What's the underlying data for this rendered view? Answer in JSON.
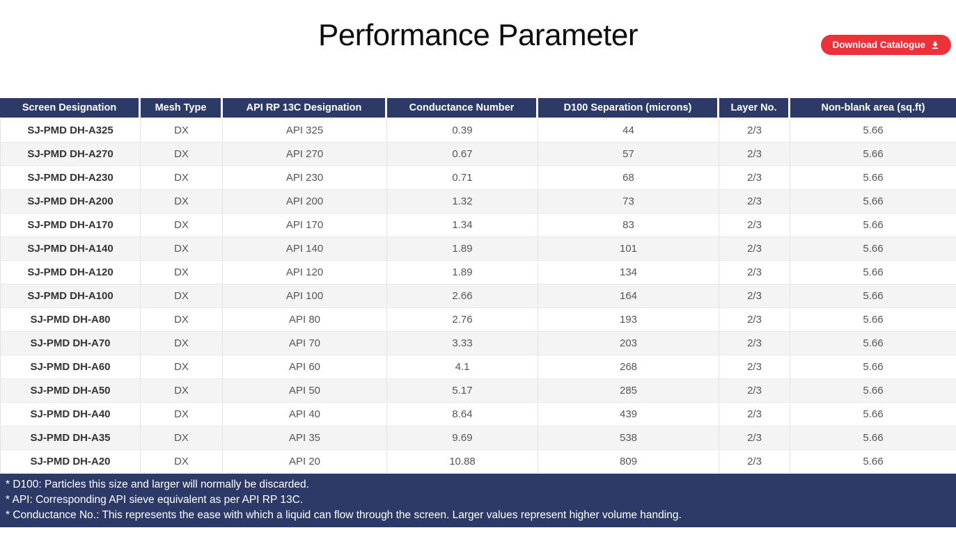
{
  "page": {
    "title": "Performance Parameter"
  },
  "toolbar": {
    "download_button_label": "Download Catalogue",
    "download_icon": "download-tray-arrow"
  },
  "colors": {
    "navy": "#2d3a68",
    "button_red": "#ed3138",
    "stripe_gray": "#f4f4f4"
  },
  "table": {
    "columns": [
      "Screen Designation",
      "Mesh Type",
      "API RP 13C Designation",
      "Conductance Number",
      "D100 Separation (microns)",
      "Layer No.",
      "Non-blank area (sq.ft)"
    ],
    "rows": [
      [
        "SJ-PMD DH-A325",
        "DX",
        "API 325",
        "0.39",
        "44",
        "2/3",
        "5.66"
      ],
      [
        "SJ-PMD DH-A270",
        "DX",
        "API 270",
        "0.67",
        "57",
        "2/3",
        "5.66"
      ],
      [
        "SJ-PMD DH-A230",
        "DX",
        "API 230",
        "0.71",
        "68",
        "2/3",
        "5.66"
      ],
      [
        "SJ-PMD DH-A200",
        "DX",
        "API 200",
        "1.32",
        "73",
        "2/3",
        "5.66"
      ],
      [
        "SJ-PMD DH-A170",
        "DX",
        "API 170",
        "1.34",
        "83",
        "2/3",
        "5.66"
      ],
      [
        "SJ-PMD DH-A140",
        "DX",
        "API 140",
        "1.89",
        "101",
        "2/3",
        "5.66"
      ],
      [
        "SJ-PMD DH-A120",
        "DX",
        "API 120",
        "1.89",
        "134",
        "2/3",
        "5.66"
      ],
      [
        "SJ-PMD DH-A100",
        "DX",
        "API 100",
        "2.66",
        "164",
        "2/3",
        "5.66"
      ],
      [
        "SJ-PMD DH-A80",
        "DX",
        "API 80",
        "2.76",
        "193",
        "2/3",
        "5.66"
      ],
      [
        "SJ-PMD DH-A70",
        "DX",
        "API 70",
        "3.33",
        "203",
        "2/3",
        "5.66"
      ],
      [
        "SJ-PMD DH-A60",
        "DX",
        "API 60",
        "4.1",
        "268",
        "2/3",
        "5.66"
      ],
      [
        "SJ-PMD DH-A50",
        "DX",
        "API 50",
        "5.17",
        "285",
        "2/3",
        "5.66"
      ],
      [
        "SJ-PMD DH-A40",
        "DX",
        "API 40",
        "8.64",
        "439",
        "2/3",
        "5.66"
      ],
      [
        "SJ-PMD DH-A35",
        "DX",
        "API 35",
        "9.69",
        "538",
        "2/3",
        "5.66"
      ],
      [
        "SJ-PMD DH-A20",
        "DX",
        "API 20",
        "10.88",
        "809",
        "2/3",
        "5.66"
      ]
    ]
  },
  "footnotes": [
    "* D100: Particles this size and larger will normally be discarded.",
    "* API: Corresponding API sieve equivalent as per API RP 13C.",
    "* Conductance No.: This represents the ease with which a liquid can flow through the screen. Larger values represent higher volume handing."
  ]
}
